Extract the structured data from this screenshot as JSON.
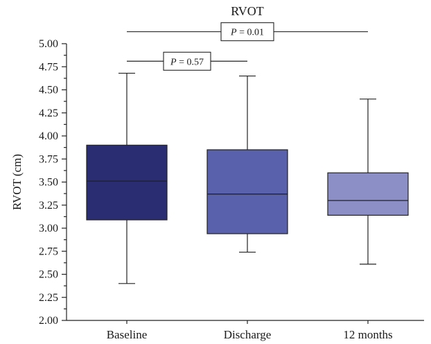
{
  "chart_data": {
    "type": "box",
    "title": "RVOT",
    "xlabel": "",
    "ylabel": "RVOT (cm)",
    "ylim": [
      2.0,
      5.0
    ],
    "yticks": [
      "2.00",
      "2.25",
      "2.50",
      "2.75",
      "3.00",
      "3.25",
      "3.50",
      "3.75",
      "4.00",
      "4.25",
      "4.50",
      "4.75",
      "5.00"
    ],
    "grid": false,
    "categories": [
      "Baseline",
      "Discharge",
      "12 months"
    ],
    "boxes": [
      {
        "category": "Baseline",
        "min": 2.4,
        "q1": 3.09,
        "median": 3.51,
        "q3": 3.9,
        "max": 4.68,
        "color": "#2b2d73"
      },
      {
        "category": "Discharge",
        "min": 2.74,
        "q1": 2.94,
        "median": 3.37,
        "q3": 3.85,
        "max": 4.65,
        "color": "#5961ad"
      },
      {
        "category": "12 months",
        "min": 2.61,
        "q1": 3.14,
        "median": 3.3,
        "q3": 3.6,
        "max": 4.4,
        "color": "#8b8fc6"
      }
    ],
    "annotations": [
      {
        "from": "Baseline",
        "to": "Discharge",
        "y": 4.81,
        "label_italic": "P",
        "label_rest": " = 0.57"
      },
      {
        "from": "Baseline",
        "to": "12 months",
        "y": 5.13,
        "label_italic": "P",
        "label_rest": " = 0.01"
      }
    ]
  }
}
